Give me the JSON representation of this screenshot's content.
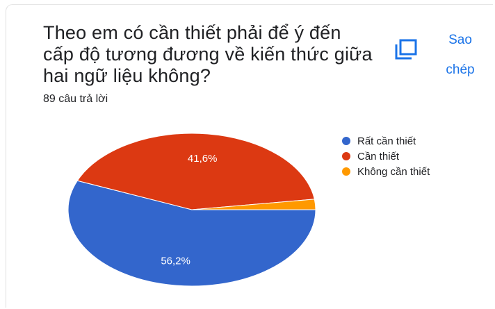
{
  "question": {
    "title": "Theo em có cần thiết phải để ý đến cấp độ tương đương về kiến thức giữa hai ngữ liệu không?",
    "response_count": "89 câu trả lời"
  },
  "copy_button": {
    "icon": "copy-icon",
    "label_line1": "Sao",
    "label_line2": "chép",
    "color": "#1a73e8"
  },
  "chart_data": {
    "type": "pie",
    "title": "Theo em có cần thiết phải để ý đến cấp độ tương đương về kiến thức giữa hai ngữ liệu không?",
    "legend_position": "right",
    "slices": [
      {
        "label": "Rất cần thiết",
        "value": 56.2,
        "display": "56,2%",
        "color": "#3366cc"
      },
      {
        "label": "Cần thiết",
        "value": 41.6,
        "display": "41,6%",
        "color": "#dc3912"
      },
      {
        "label": "Không cần thiết",
        "value": 2.2,
        "display": "",
        "color": "#ff9900"
      }
    ]
  }
}
